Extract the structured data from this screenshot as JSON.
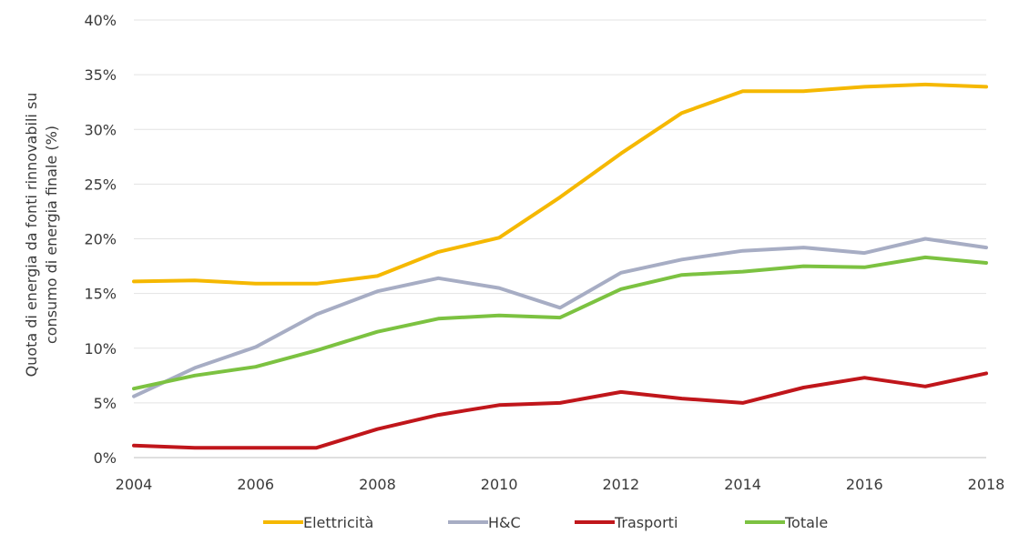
{
  "chart_data": {
    "type": "line",
    "title": "",
    "xlabel": "",
    "ylabel": "Quota di energia da fonti rinnovabili su consumo di energia finale (%)",
    "ylabel_lines": [
      "Quota di energia da fonti rinnovabili su",
      "consumo di energia finale (%)"
    ],
    "xlim": [
      2004,
      2018
    ],
    "ylim": [
      0,
      40
    ],
    "x_ticks": [
      "2004",
      "2006",
      "2008",
      "2010",
      "2012",
      "2014",
      "2016",
      "2018"
    ],
    "y_ticks": [
      "0%",
      "5%",
      "10%",
      "15%",
      "20%",
      "25%",
      "30%",
      "35%",
      "40%"
    ],
    "grid": "horizontal",
    "legend_position": "bottom",
    "x": [
      2004,
      2005,
      2006,
      2007,
      2008,
      2009,
      2010,
      2011,
      2012,
      2013,
      2014,
      2015,
      2016,
      2017,
      2018
    ],
    "series": [
      {
        "name": "Elettricità",
        "color": "#F5B800",
        "values": [
          16.1,
          16.2,
          15.9,
          15.9,
          16.6,
          18.8,
          20.1,
          23.8,
          27.8,
          31.5,
          33.5,
          33.5,
          33.9,
          34.1,
          33.9
        ]
      },
      {
        "name": "H&C",
        "color": "#A7ADC4",
        "values": [
          5.6,
          8.2,
          10.1,
          13.1,
          15.2,
          16.4,
          15.5,
          13.7,
          16.9,
          18.1,
          18.9,
          19.2,
          18.7,
          20.0,
          19.2
        ]
      },
      {
        "name": "Trasporti",
        "color": "#C0161B",
        "values": [
          1.1,
          0.9,
          0.9,
          0.9,
          2.6,
          3.9,
          4.8,
          5.0,
          6.0,
          5.4,
          5.0,
          6.4,
          7.3,
          6.5,
          7.7
        ]
      },
      {
        "name": "Totale",
        "color": "#7CC241",
        "values": [
          6.3,
          7.5,
          8.3,
          9.8,
          11.5,
          12.7,
          13.0,
          12.8,
          15.4,
          16.7,
          17.0,
          17.5,
          17.4,
          18.3,
          17.8
        ]
      }
    ]
  }
}
